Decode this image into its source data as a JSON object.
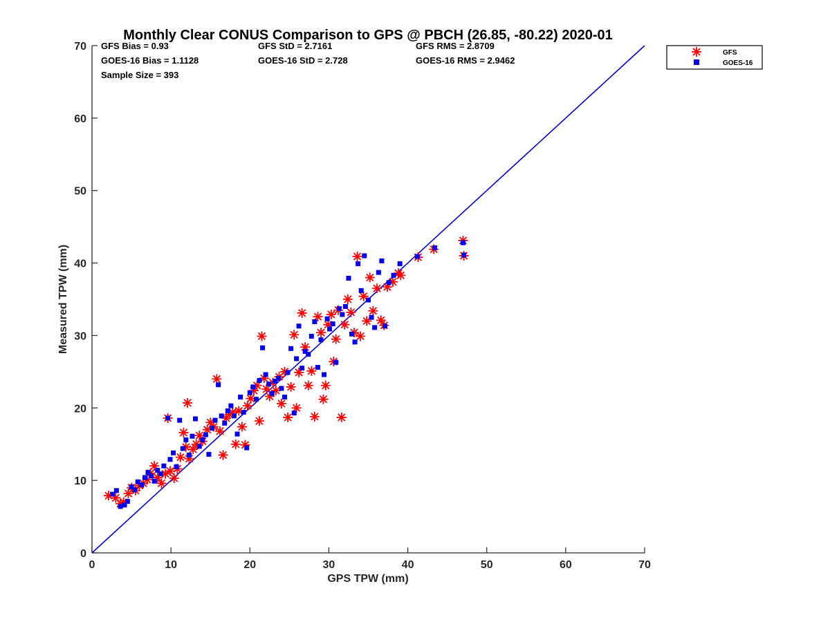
{
  "chart_data": {
    "type": "scatter",
    "title": "Monthly Clear CONUS Comparison to GPS @ PBCH (26.85, -80.22) 2020-01",
    "xlabel": "GPS TPW (mm)",
    "ylabel": "Measured TPW (mm)",
    "xlim": [
      0,
      70
    ],
    "ylim": [
      0,
      70
    ],
    "xticks": [
      0,
      10,
      20,
      30,
      40,
      50,
      60,
      70
    ],
    "yticks": [
      0,
      10,
      20,
      30,
      40,
      50,
      60,
      70
    ],
    "grid": false,
    "legend_position": "top-right",
    "stats": [
      [
        "GFS Bias = 0.93",
        "GFS StD = 2.7161",
        "GFS RMS = 2.8709"
      ],
      [
        "GOES-16 Bias = 1.1128",
        "GOES-16 StD = 2.728",
        "GOES-16 RMS = 2.9462"
      ],
      [
        "Sample Size = 393"
      ]
    ],
    "reference_line": {
      "x": [
        0,
        70
      ],
      "y": [
        0,
        70
      ],
      "color": "#0000dd"
    },
    "series": [
      {
        "name": "GFS",
        "marker": "asterisk",
        "color": "#ff0000",
        "points": [
          [
            2.1,
            7.9
          ],
          [
            3.0,
            7.6
          ],
          [
            3.6,
            6.8
          ],
          [
            4.0,
            7.0
          ],
          [
            4.6,
            8.2
          ],
          [
            5.0,
            9.0
          ],
          [
            5.5,
            8.6
          ],
          [
            6.0,
            9.3
          ],
          [
            6.5,
            9.6
          ],
          [
            7.0,
            10.1
          ],
          [
            7.4,
            11.0
          ],
          [
            7.9,
            12.0
          ],
          [
            8.3,
            10.4
          ],
          [
            8.8,
            9.6
          ],
          [
            9.3,
            10.9
          ],
          [
            9.6,
            18.6
          ],
          [
            9.9,
            11.3
          ],
          [
            10.4,
            10.3
          ],
          [
            10.8,
            11.6
          ],
          [
            11.2,
            13.2
          ],
          [
            11.6,
            16.6
          ],
          [
            11.9,
            14.6
          ],
          [
            12.1,
            20.7
          ],
          [
            12.3,
            13.0
          ],
          [
            12.8,
            14.3
          ],
          [
            13.2,
            15.0
          ],
          [
            13.6,
            16.2
          ],
          [
            14.0,
            15.4
          ],
          [
            14.6,
            17.0
          ],
          [
            15.0,
            18.0
          ],
          [
            15.4,
            17.4
          ],
          [
            15.8,
            24.0
          ],
          [
            16.2,
            16.8
          ],
          [
            16.6,
            13.5
          ],
          [
            17.0,
            18.6
          ],
          [
            17.4,
            19.1
          ],
          [
            17.8,
            19.4
          ],
          [
            18.2,
            15.0
          ],
          [
            18.6,
            19.6
          ],
          [
            19.0,
            17.4
          ],
          [
            19.4,
            14.9
          ],
          [
            19.7,
            20.3
          ],
          [
            20.1,
            21.3
          ],
          [
            20.5,
            22.4
          ],
          [
            20.9,
            23.1
          ],
          [
            21.2,
            18.2
          ],
          [
            21.5,
            29.9
          ],
          [
            21.8,
            24.1
          ],
          [
            22.1,
            22.6
          ],
          [
            22.5,
            21.6
          ],
          [
            22.9,
            23.5
          ],
          [
            23.3,
            22.4
          ],
          [
            23.7,
            24.3
          ],
          [
            24.0,
            20.6
          ],
          [
            24.4,
            25.0
          ],
          [
            24.8,
            18.7
          ],
          [
            25.2,
            22.9
          ],
          [
            25.6,
            30.1
          ],
          [
            25.9,
            20.0
          ],
          [
            26.2,
            24.9
          ],
          [
            26.6,
            33.1
          ],
          [
            27.0,
            28.4
          ],
          [
            27.4,
            23.1
          ],
          [
            27.8,
            25.1
          ],
          [
            28.2,
            18.8
          ],
          [
            28.6,
            32.6
          ],
          [
            29.0,
            30.4
          ],
          [
            29.3,
            21.2
          ],
          [
            29.6,
            23.1
          ],
          [
            29.9,
            31.5
          ],
          [
            30.3,
            32.9
          ],
          [
            30.6,
            26.4
          ],
          [
            30.9,
            29.5
          ],
          [
            31.2,
            33.5
          ],
          [
            31.6,
            18.7
          ],
          [
            32.0,
            31.5
          ],
          [
            32.4,
            35.0
          ],
          [
            32.8,
            33.2
          ],
          [
            33.2,
            30.4
          ],
          [
            33.6,
            40.9
          ],
          [
            34.0,
            29.9
          ],
          [
            34.4,
            35.4
          ],
          [
            34.8,
            32.0
          ],
          [
            35.2,
            38.0
          ],
          [
            35.6,
            33.4
          ],
          [
            36.1,
            36.5
          ],
          [
            36.6,
            32.1
          ],
          [
            37.0,
            31.4
          ],
          [
            37.4,
            36.7
          ],
          [
            38.1,
            37.4
          ],
          [
            38.8,
            38.6
          ],
          [
            39.1,
            38.3
          ],
          [
            41.3,
            40.8
          ],
          [
            43.3,
            41.9
          ],
          [
            47.0,
            43.1
          ],
          [
            47.1,
            41.0
          ]
        ]
      },
      {
        "name": "GOES-16",
        "marker": "square",
        "color": "#0000ee",
        "points": [
          [
            2.6,
            8.1
          ],
          [
            3.1,
            8.6
          ],
          [
            3.6,
            6.4
          ],
          [
            4.1,
            6.6
          ],
          [
            4.5,
            7.1
          ],
          [
            5.0,
            9.1
          ],
          [
            5.4,
            8.7
          ],
          [
            5.8,
            9.8
          ],
          [
            6.3,
            9.4
          ],
          [
            6.7,
            10.4
          ],
          [
            7.1,
            11.1
          ],
          [
            7.5,
            10.6
          ],
          [
            7.9,
            9.9
          ],
          [
            8.3,
            11.4
          ],
          [
            8.7,
            10.9
          ],
          [
            9.1,
            12.0
          ],
          [
            9.6,
            18.6
          ],
          [
            9.9,
            12.9
          ],
          [
            10.3,
            13.8
          ],
          [
            10.7,
            11.9
          ],
          [
            11.1,
            18.3
          ],
          [
            11.5,
            14.4
          ],
          [
            11.9,
            15.6
          ],
          [
            12.3,
            13.5
          ],
          [
            12.7,
            16.1
          ],
          [
            13.1,
            18.5
          ],
          [
            13.6,
            14.7
          ],
          [
            14.0,
            15.6
          ],
          [
            14.4,
            16.3
          ],
          [
            14.8,
            13.6
          ],
          [
            15.2,
            17.2
          ],
          [
            15.6,
            18.3
          ],
          [
            16.0,
            23.2
          ],
          [
            16.4,
            18.9
          ],
          [
            16.8,
            17.9
          ],
          [
            17.2,
            19.6
          ],
          [
            17.6,
            20.3
          ],
          [
            18.0,
            18.9
          ],
          [
            18.4,
            16.4
          ],
          [
            18.8,
            21.5
          ],
          [
            19.2,
            19.4
          ],
          [
            19.6,
            14.5
          ],
          [
            20.0,
            22.1
          ],
          [
            20.4,
            22.9
          ],
          [
            20.8,
            21.2
          ],
          [
            21.2,
            23.8
          ],
          [
            21.6,
            28.3
          ],
          [
            22.0,
            24.6
          ],
          [
            22.4,
            23.3
          ],
          [
            22.8,
            22.0
          ],
          [
            23.2,
            23.7
          ],
          [
            23.6,
            24.1
          ],
          [
            24.0,
            22.7
          ],
          [
            24.4,
            21.5
          ],
          [
            24.8,
            24.9
          ],
          [
            25.2,
            28.2
          ],
          [
            25.6,
            19.3
          ],
          [
            25.9,
            26.8
          ],
          [
            26.2,
            31.3
          ],
          [
            26.6,
            25.5
          ],
          [
            27.0,
            27.8
          ],
          [
            27.4,
            27.4
          ],
          [
            27.8,
            29.9
          ],
          [
            28.2,
            31.9
          ],
          [
            28.6,
            25.6
          ],
          [
            29.0,
            29.4
          ],
          [
            29.4,
            24.6
          ],
          [
            29.8,
            32.3
          ],
          [
            30.1,
            30.9
          ],
          [
            30.5,
            31.6
          ],
          [
            30.9,
            26.3
          ],
          [
            31.3,
            33.7
          ],
          [
            31.7,
            32.9
          ],
          [
            32.1,
            34.0
          ],
          [
            32.5,
            37.9
          ],
          [
            32.9,
            30.2
          ],
          [
            33.3,
            29.1
          ],
          [
            33.7,
            39.9
          ],
          [
            34.1,
            36.2
          ],
          [
            34.5,
            41.0
          ],
          [
            35.0,
            34.9
          ],
          [
            35.4,
            32.5
          ],
          [
            35.8,
            31.1
          ],
          [
            36.3,
            38.7
          ],
          [
            36.7,
            40.3
          ],
          [
            37.1,
            31.3
          ],
          [
            37.6,
            37.3
          ],
          [
            38.2,
            38.3
          ],
          [
            39.0,
            39.9
          ],
          [
            41.2,
            40.9
          ],
          [
            43.4,
            42.1
          ],
          [
            47.1,
            41.1
          ],
          [
            47.0,
            42.8
          ]
        ]
      }
    ]
  }
}
